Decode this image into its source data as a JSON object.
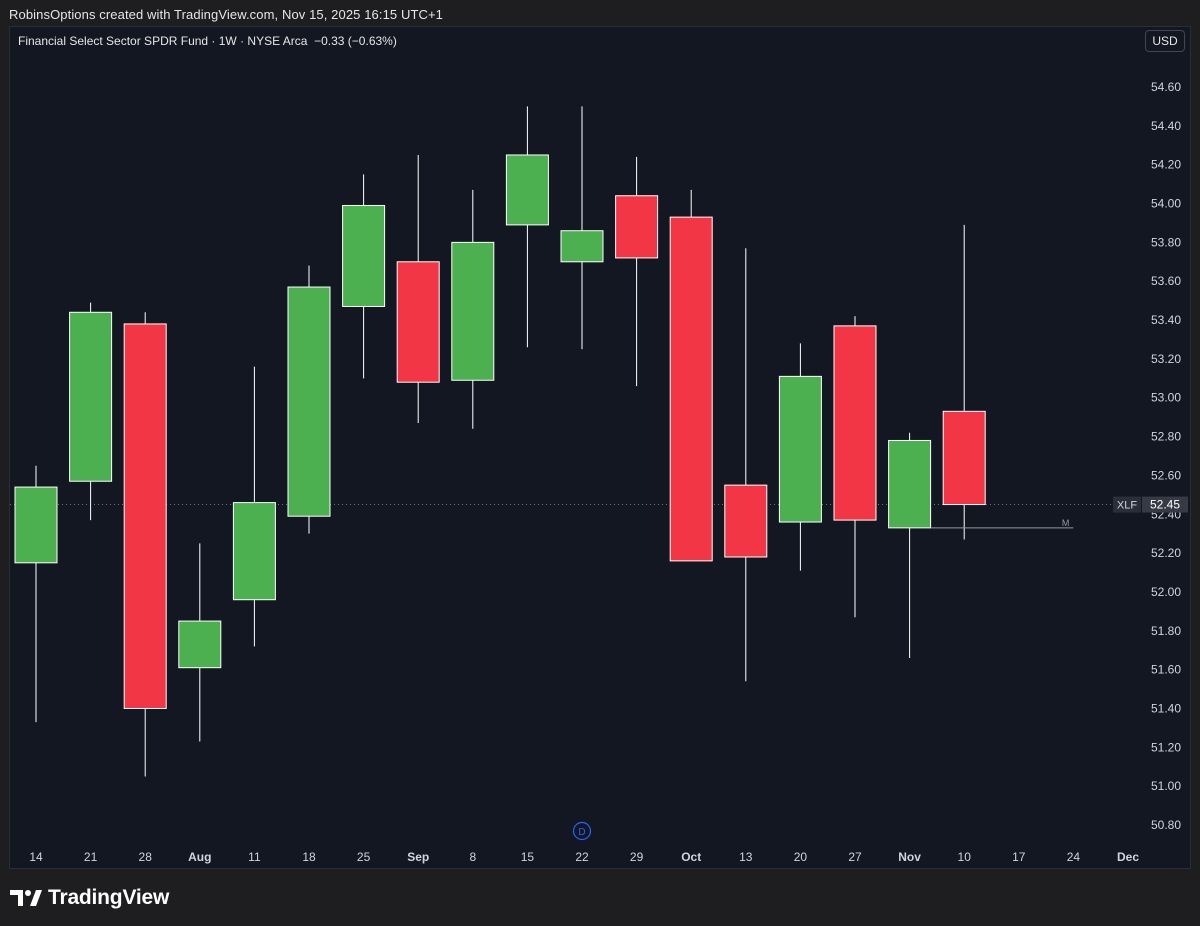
{
  "header": {
    "attribution": "RobinsOptions created with TradingView.com, Nov 15, 2025 16:15 UTC+1"
  },
  "legend": {
    "text": "Financial Select Sector SPDR Fund · 1W · NYSE Arca  −0.33 (−0.63%)"
  },
  "currency": "USD",
  "brand": {
    "name": "TradingView"
  },
  "colors": {
    "up": "#4caf50",
    "down": "#f23645",
    "grid_line": "#363a45",
    "wick": "#ffffff",
    "axis_text": "#d1d4dc"
  },
  "chart_data": {
    "type": "candlestick",
    "interval": "1W",
    "ylim": [
      50.7,
      54.7
    ],
    "y_ticks": [
      50.8,
      51.0,
      51.2,
      51.4,
      51.6,
      51.8,
      52.0,
      52.2,
      52.4,
      52.6,
      52.8,
      53.0,
      53.2,
      53.4,
      53.6,
      53.8,
      54.0,
      54.2,
      54.4,
      54.6
    ],
    "x_ticks": [
      {
        "slot": 0,
        "label": "14"
      },
      {
        "slot": 1,
        "label": "21"
      },
      {
        "slot": 2,
        "label": "28"
      },
      {
        "slot": 3,
        "label": "Aug"
      },
      {
        "slot": 4,
        "label": "11"
      },
      {
        "slot": 5,
        "label": "18"
      },
      {
        "slot": 6,
        "label": "25"
      },
      {
        "slot": 7,
        "label": "Sep"
      },
      {
        "slot": 8,
        "label": "8"
      },
      {
        "slot": 9,
        "label": "15"
      },
      {
        "slot": 10,
        "label": "22"
      },
      {
        "slot": 11,
        "label": "29"
      },
      {
        "slot": 12,
        "label": "Oct"
      },
      {
        "slot": 13,
        "label": "13"
      },
      {
        "slot": 14,
        "label": "20"
      },
      {
        "slot": 15,
        "label": "27"
      },
      {
        "slot": 16,
        "label": "Nov"
      },
      {
        "slot": 17,
        "label": "10"
      },
      {
        "slot": 18,
        "label": "17"
      },
      {
        "slot": 19,
        "label": "24"
      },
      {
        "slot": 20,
        "label": "Dec"
      }
    ],
    "candles": [
      {
        "o": 52.15,
        "h": 52.65,
        "l": 51.33,
        "c": 52.54
      },
      {
        "o": 52.57,
        "h": 53.49,
        "l": 52.37,
        "c": 53.44
      },
      {
        "o": 53.38,
        "h": 53.44,
        "l": 51.05,
        "c": 51.4
      },
      {
        "o": 51.61,
        "h": 52.25,
        "l": 51.23,
        "c": 51.85
      },
      {
        "o": 51.96,
        "h": 53.16,
        "l": 51.72,
        "c": 52.46
      },
      {
        "o": 52.39,
        "h": 53.68,
        "l": 52.3,
        "c": 53.57
      },
      {
        "o": 53.47,
        "h": 54.15,
        "l": 53.1,
        "c": 53.99
      },
      {
        "o": 53.7,
        "h": 54.25,
        "l": 52.87,
        "c": 53.08
      },
      {
        "o": 53.09,
        "h": 54.07,
        "l": 52.84,
        "c": 53.8
      },
      {
        "o": 53.89,
        "h": 54.5,
        "l": 53.26,
        "c": 54.25
      },
      {
        "o": 53.7,
        "h": 54.5,
        "l": 53.25,
        "c": 53.86
      },
      {
        "o": 54.04,
        "h": 54.24,
        "l": 53.06,
        "c": 53.72
      },
      {
        "o": 53.93,
        "h": 54.07,
        "l": 52.16,
        "c": 52.16
      },
      {
        "o": 52.55,
        "h": 53.77,
        "l": 51.54,
        "c": 52.18
      },
      {
        "o": 52.36,
        "h": 53.28,
        "l": 52.11,
        "c": 53.11
      },
      {
        "o": 53.37,
        "h": 53.42,
        "l": 51.87,
        "c": 52.37
      },
      {
        "o": 52.33,
        "h": 52.82,
        "l": 51.66,
        "c": 52.78
      },
      {
        "o": 52.93,
        "h": 53.89,
        "l": 52.27,
        "c": 52.45
      }
    ],
    "last_price": {
      "value": 52.45,
      "symbol": "XLF",
      "label": "52.45"
    },
    "marker_line": {
      "value": 52.33,
      "from_slot": 17,
      "to_slot": 19,
      "label": "M"
    },
    "event_marker": {
      "slot": 10,
      "label": "D"
    }
  }
}
